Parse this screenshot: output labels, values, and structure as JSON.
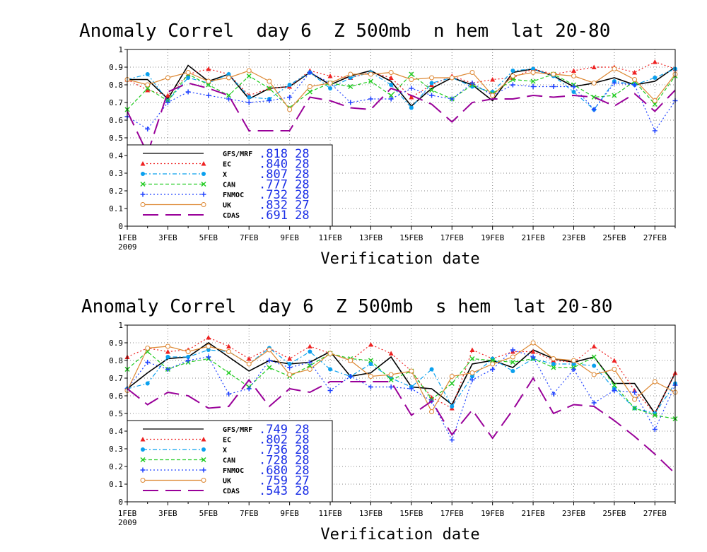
{
  "charts": [
    {
      "title": "Anomaly Correl  day 6  Z 500mb  n hem  lat 20-80",
      "xlabel": "Verification date",
      "year_label": "2009",
      "yticks": [
        "0",
        "0.1",
        "0.2",
        "0.3",
        "0.4",
        "0.5",
        "0.6",
        "0.7",
        "0.8",
        "0.9",
        "1"
      ],
      "xticks": [
        "1FEB",
        "3FEB",
        "5FEB",
        "7FEB",
        "9FEB",
        "11FEB",
        "13FEB",
        "15FEB",
        "17FEB",
        "19FEB",
        "21FEB",
        "23FEB",
        "25FEB",
        "27FEB"
      ],
      "legend": [
        {
          "name": "GFS/MRF",
          "stat": ".818  28"
        },
        {
          "name": "EC",
          "stat": ".840  28"
        },
        {
          "name": "X",
          "stat": ".807  28"
        },
        {
          "name": "CAN",
          "stat": ".777  28"
        },
        {
          "name": "FNMOC",
          "stat": ".732  28"
        },
        {
          "name": "UK",
          "stat": ".832  27"
        },
        {
          "name": "CDAS",
          "stat": ".691  28"
        }
      ]
    },
    {
      "title": "Anomaly Correl  day 6  Z 500mb  s hem  lat 20-80",
      "xlabel": "Verification date",
      "year_label": "2009",
      "yticks": [
        "0",
        "0.1",
        "0.2",
        "0.3",
        "0.4",
        "0.5",
        "0.6",
        "0.7",
        "0.8",
        "0.9",
        "1"
      ],
      "xticks": [
        "1FEB",
        "3FEB",
        "5FEB",
        "7FEB",
        "9FEB",
        "11FEB",
        "13FEB",
        "15FEB",
        "17FEB",
        "19FEB",
        "21FEB",
        "23FEB",
        "25FEB",
        "27FEB"
      ],
      "legend": [
        {
          "name": "GFS/MRF",
          "stat": ".749  28"
        },
        {
          "name": "EC",
          "stat": ".802  28"
        },
        {
          "name": "X",
          "stat": ".736  28"
        },
        {
          "name": "CAN",
          "stat": ".728  28"
        },
        {
          "name": "FNMOC",
          "stat": ".680  28"
        },
        {
          "name": "UK",
          "stat": ".759  27"
        },
        {
          "name": "CDAS",
          "stat": ".543  28"
        }
      ]
    }
  ],
  "chart_data": [
    {
      "type": "line",
      "title": "Anomaly Correl  day 6  Z 500mb  n hem  lat 20-80",
      "xlabel": "Verification date",
      "ylabel": "",
      "ylim": [
        0,
        1
      ],
      "xlim": [
        "2009-02-01",
        "2009-02-28"
      ],
      "grid": true,
      "legend_position": "bottom-left",
      "x": [
        "2009-02-01",
        "2009-02-02",
        "2009-02-03",
        "2009-02-04",
        "2009-02-05",
        "2009-02-06",
        "2009-02-07",
        "2009-02-08",
        "2009-02-09",
        "2009-02-10",
        "2009-02-11",
        "2009-02-12",
        "2009-02-13",
        "2009-02-14",
        "2009-02-15",
        "2009-02-16",
        "2009-02-17",
        "2009-02-18",
        "2009-02-19",
        "2009-02-20",
        "2009-02-21",
        "2009-02-22",
        "2009-02-23",
        "2009-02-24",
        "2009-02-25",
        "2009-02-26",
        "2009-02-27",
        "2009-02-28"
      ],
      "series": [
        {
          "name": "GFS/MRF",
          "color": "#000000",
          "style": "solid",
          "marker": "none",
          "values": [
            0.83,
            0.83,
            0.72,
            0.91,
            0.82,
            0.86,
            0.72,
            0.78,
            0.79,
            0.87,
            0.8,
            0.85,
            0.88,
            0.82,
            0.68,
            0.78,
            0.84,
            0.8,
            0.71,
            0.87,
            0.89,
            0.85,
            0.79,
            0.81,
            0.84,
            0.8,
            0.82,
            0.9
          ]
        },
        {
          "name": "EC",
          "color": "#ee2222",
          "style": "dotted",
          "marker": "triangle",
          "values": [
            0.83,
            0.77,
            0.74,
            0.86,
            0.89,
            0.86,
            0.74,
            0.78,
            0.79,
            0.88,
            0.85,
            0.84,
            0.87,
            0.84,
            0.73,
            0.8,
            0.85,
            0.81,
            0.83,
            0.84,
            0.89,
            0.86,
            0.88,
            0.9,
            0.9,
            0.87,
            0.93,
            0.89
          ]
        },
        {
          "name": "X",
          "color": "#0aa0ee",
          "style": "dashdot",
          "marker": "circle",
          "values": [
            0.83,
            0.86,
            0.71,
            0.84,
            0.81,
            0.86,
            0.73,
            0.72,
            0.8,
            0.87,
            0.78,
            0.84,
            0.87,
            0.8,
            0.67,
            0.81,
            0.84,
            0.79,
            0.76,
            0.88,
            0.89,
            0.85,
            0.76,
            0.66,
            0.82,
            0.8,
            0.84,
            0.89
          ]
        },
        {
          "name": "CAN",
          "color": "#22cc22",
          "style": "dashed",
          "marker": "x",
          "values": [
            0.66,
            0.78,
            0.71,
            0.86,
            0.8,
            0.74,
            0.85,
            0.78,
            0.67,
            0.76,
            0.81,
            0.79,
            0.82,
            0.74,
            0.86,
            0.77,
            0.72,
            0.8,
            0.75,
            0.83,
            0.82,
            0.86,
            0.8,
            0.73,
            0.74,
            0.82,
            0.69,
            0.85
          ]
        },
        {
          "name": "FNMOC",
          "color": "#2244ff",
          "style": "dotted",
          "marker": "plus",
          "values": [
            0.62,
            0.55,
            0.7,
            0.76,
            0.74,
            0.72,
            0.7,
            0.71,
            0.73,
            0.87,
            0.81,
            0.7,
            0.72,
            0.72,
            0.78,
            0.74,
            0.72,
            0.81,
            0.74,
            0.8,
            0.79,
            0.79,
            0.79,
            0.66,
            0.81,
            0.8,
            0.54,
            0.71
          ]
        },
        {
          "name": "UK",
          "color": "#dd8833",
          "style": "solid",
          "marker": "circle-open",
          "values": [
            0.83,
            0.8,
            0.84,
            0.87,
            0.82,
            0.84,
            0.88,
            0.82,
            0.66,
            0.79,
            0.81,
            0.86,
            0.86,
            0.87,
            0.83,
            0.84,
            0.84,
            0.87,
            0.74,
            0.85,
            0.87,
            0.86,
            0.85,
            0.81,
            0.89,
            0.83,
            0.71,
            0.86
          ]
        },
        {
          "name": "CDAS",
          "color": "#990099",
          "style": "longdash",
          "marker": "none",
          "values": [
            0.65,
            0.41,
            0.76,
            0.81,
            0.78,
            0.74,
            0.54,
            0.54,
            0.54,
            0.73,
            0.71,
            0.67,
            0.66,
            0.78,
            0.74,
            0.69,
            0.59,
            0.7,
            0.72,
            0.72,
            0.74,
            0.73,
            0.74,
            0.73,
            0.68,
            0.75,
            0.65,
            0.77
          ]
        }
      ]
    },
    {
      "type": "line",
      "title": "Anomaly Correl  day 6  Z 500mb  s hem  lat 20-80",
      "xlabel": "Verification date",
      "ylabel": "",
      "ylim": [
        0,
        1
      ],
      "xlim": [
        "2009-02-01",
        "2009-02-28"
      ],
      "grid": true,
      "legend_position": "bottom-left",
      "x": [
        "2009-02-01",
        "2009-02-02",
        "2009-02-03",
        "2009-02-04",
        "2009-02-05",
        "2009-02-06",
        "2009-02-07",
        "2009-02-08",
        "2009-02-09",
        "2009-02-10",
        "2009-02-11",
        "2009-02-12",
        "2009-02-13",
        "2009-02-14",
        "2009-02-15",
        "2009-02-16",
        "2009-02-17",
        "2009-02-18",
        "2009-02-19",
        "2009-02-20",
        "2009-02-21",
        "2009-02-22",
        "2009-02-23",
        "2009-02-24",
        "2009-02-25",
        "2009-02-26",
        "2009-02-27",
        "2009-02-28"
      ],
      "series": [
        {
          "name": "GFS/MRF",
          "color": "#000000",
          "style": "solid",
          "marker": "none",
          "values": [
            0.64,
            0.73,
            0.81,
            0.82,
            0.9,
            0.82,
            0.74,
            0.8,
            0.78,
            0.79,
            0.85,
            0.71,
            0.73,
            0.82,
            0.65,
            0.64,
            0.55,
            0.78,
            0.8,
            0.76,
            0.86,
            0.81,
            0.79,
            0.82,
            0.67,
            0.67,
            0.5,
            0.73
          ]
        },
        {
          "name": "EC",
          "color": "#ee2222",
          "style": "dotted",
          "marker": "triangle",
          "values": [
            0.82,
            0.87,
            0.85,
            0.86,
            0.93,
            0.88,
            0.81,
            0.87,
            0.81,
            0.88,
            0.84,
            0.8,
            0.89,
            0.84,
            0.74,
            0.59,
            0.53,
            0.86,
            0.81,
            0.85,
            0.85,
            0.8,
            0.79,
            0.88,
            0.8,
            0.63,
            0.5,
            0.73
          ]
        },
        {
          "name": "X",
          "color": "#0aa0ee",
          "style": "dashdot",
          "marker": "circle",
          "values": [
            0.64,
            0.67,
            0.82,
            0.82,
            0.86,
            0.85,
            0.78,
            0.87,
            0.78,
            0.85,
            0.75,
            0.71,
            0.78,
            0.7,
            0.65,
            0.75,
            0.54,
            0.71,
            0.81,
            0.74,
            0.81,
            0.78,
            0.78,
            0.77,
            0.64,
            0.53,
            0.5,
            0.67
          ]
        },
        {
          "name": "CAN",
          "color": "#22cc22",
          "style": "dashed",
          "marker": "x",
          "values": [
            0.75,
            0.85,
            0.75,
            0.79,
            0.81,
            0.73,
            0.65,
            0.76,
            0.71,
            0.77,
            0.84,
            0.81,
            0.8,
            0.69,
            0.74,
            0.58,
            0.67,
            0.81,
            0.8,
            0.79,
            0.81,
            0.76,
            0.76,
            0.82,
            0.66,
            0.53,
            0.49,
            0.47
          ]
        },
        {
          "name": "FNMOC",
          "color": "#2244ff",
          "style": "dotted",
          "marker": "plus",
          "values": [
            0.64,
            0.79,
            0.75,
            0.8,
            0.82,
            0.61,
            0.64,
            0.8,
            0.76,
            0.79,
            0.63,
            0.71,
            0.65,
            0.65,
            0.64,
            0.57,
            0.35,
            0.69,
            0.75,
            0.86,
            0.82,
            0.61,
            0.75,
            0.56,
            0.63,
            0.62,
            0.41,
            0.66
          ]
        },
        {
          "name": "UK",
          "color": "#dd8833",
          "style": "solid",
          "marker": "circle-open",
          "values": [
            0.63,
            0.87,
            0.88,
            0.85,
            0.88,
            0.85,
            0.78,
            0.86,
            0.72,
            0.75,
            0.84,
            0.8,
            0.71,
            0.72,
            0.74,
            0.51,
            0.71,
            0.73,
            0.78,
            0.82,
            0.9,
            0.81,
            0.8,
            0.72,
            0.75,
            0.58,
            0.68,
            0.62
          ]
        },
        {
          "name": "CDAS",
          "color": "#990099",
          "style": "longdash",
          "marker": "none",
          "values": [
            0.64,
            0.55,
            0.62,
            0.6,
            0.53,
            0.54,
            0.69,
            0.54,
            0.64,
            0.62,
            0.68,
            0.68,
            0.68,
            0.68,
            0.49,
            0.57,
            0.38,
            0.52,
            0.36,
            0.52,
            0.7,
            0.5,
            0.55,
            0.54,
            0.46,
            0.37,
            0.27,
            0.16
          ]
        }
      ]
    }
  ]
}
